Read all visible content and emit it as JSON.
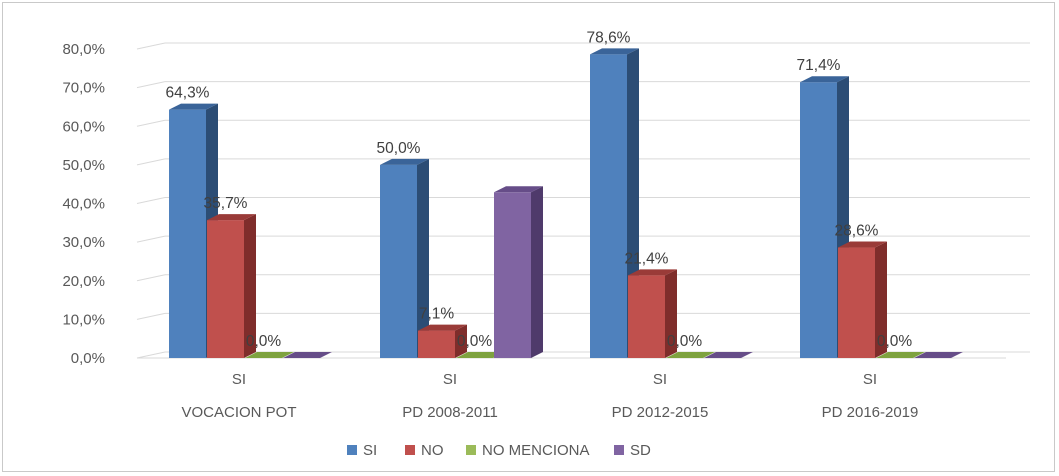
{
  "chart_data": {
    "type": "bar",
    "style": "3d-clustered-column",
    "categories": [
      {
        "sub": "SI",
        "main": "VOCACION POT"
      },
      {
        "sub": "SI",
        "main": "PD 2008-2011"
      },
      {
        "sub": "SI",
        "main": "PD 2012-2015"
      },
      {
        "sub": "SI",
        "main": "PD 2016-2019"
      }
    ],
    "series": [
      {
        "name": "SI",
        "color": "#4f81bd",
        "side": "#2c4d75",
        "top": "#3a6499",
        "values": [
          64.3,
          50.0,
          78.6,
          71.4
        ],
        "labels": [
          "64,3%",
          "50,0%",
          "78,6%",
          "71,4%"
        ]
      },
      {
        "name": "NO",
        "color": "#c0504d",
        "side": "#7f2d2b",
        "top": "#9a3b38",
        "values": [
          35.7,
          7.1,
          21.4,
          28.6
        ],
        "labels": [
          "35,7%",
          "7,1%",
          "21,4%",
          "28,6%"
        ]
      },
      {
        "name": "NO MENCIONA",
        "color": "#9bbb59",
        "side": "#6b8a2d",
        "top": "#7ea23f",
        "values": [
          0,
          0,
          0,
          0
        ],
        "labels": [
          "0,0%",
          "0,0%",
          "0,0%",
          "0,0%"
        ]
      },
      {
        "name": "SD",
        "color": "#8064a2",
        "side": "#4f3a6b",
        "top": "#664d88",
        "values": [
          0,
          42.9,
          0,
          0
        ],
        "labels": [
          "",
          "",
          "",
          ""
        ]
      }
    ],
    "yticks": [
      "0,0%",
      "10,0%",
      "20,0%",
      "30,0%",
      "40,0%",
      "50,0%",
      "60,0%",
      "70,0%",
      "80,0%"
    ],
    "ylim": [
      0,
      80
    ],
    "grid": true,
    "legend": "bottom"
  }
}
